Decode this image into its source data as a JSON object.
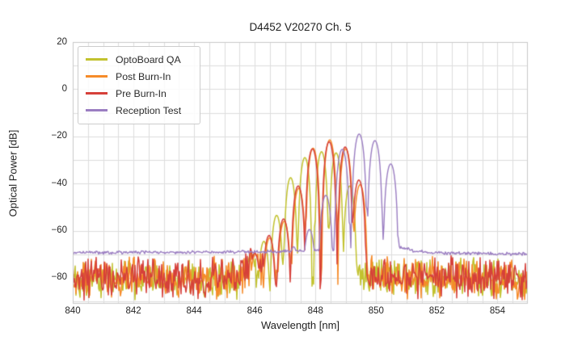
{
  "title": "D4452 V20270 Ch. 5",
  "axes": {
    "xlabel": "Wavelength [nm]",
    "ylabel": "Optical Power [dB]",
    "x_ticks": [
      {
        "value": 840,
        "label": "840"
      },
      {
        "value": 842,
        "label": "842"
      },
      {
        "value": 844,
        "label": "844"
      },
      {
        "value": 846,
        "label": "846"
      },
      {
        "value": 848,
        "label": "848"
      },
      {
        "value": 850,
        "label": "850"
      },
      {
        "value": 852,
        "label": "852"
      },
      {
        "value": 854,
        "label": "854"
      }
    ],
    "y_ticks": [
      {
        "value": 20,
        "label": "20"
      },
      {
        "value": 0,
        "label": "0"
      },
      {
        "value": -20,
        "label": "−20"
      },
      {
        "value": -40,
        "label": "−40"
      },
      {
        "value": -60,
        "label": "−60"
      },
      {
        "value": -80,
        "label": "−80"
      }
    ]
  },
  "legend": {
    "items": [
      {
        "label": "OptoBoard QA",
        "color": "#c2c22e"
      },
      {
        "label": "Post Burn-In",
        "color": "#f68b29"
      },
      {
        "label": "Pre Burn-In",
        "color": "#d6403a"
      },
      {
        "label": "Reception Test",
        "color": "#9b7ec2"
      }
    ]
  },
  "chart_data": {
    "type": "line",
    "title": "D4452 V20270 Ch. 5",
    "xlabel": "Wavelength [nm]",
    "ylabel": "Optical Power [dB]",
    "xlim": [
      840,
      855
    ],
    "ylim": [
      -91,
      20
    ],
    "grid": {
      "on": true,
      "x_step_nm": 0.5,
      "y_step_db": 10,
      "color": "#dddddd",
      "border_color": "#c9c9c9"
    },
    "legend_position": "upper left",
    "null_depth_db": 32,
    "lobe_rolloff_db": 40,
    "series": [
      {
        "name": "OptoBoard QA",
        "color": "#c2c22e",
        "line_width": 1.5,
        "mode_spacing_nm": 0.47,
        "modes": [
          [
            845.88,
            -69.5
          ],
          [
            846.3,
            -64.5
          ],
          [
            846.72,
            -53.5
          ],
          [
            847.18,
            -37.5
          ],
          [
            847.65,
            -29
          ],
          [
            848.2,
            -26.5
          ],
          [
            848.68,
            -27
          ],
          [
            849.13,
            -41
          ]
        ],
        "noise": {
          "type": "spiky",
          "amp_db": 10,
          "seed": 101,
          "baseline": [
            [
              840,
              -80.5
            ],
            [
              845.4,
              -80.3
            ],
            [
              845.75,
              -76.5
            ],
            [
              846.15,
              -76.5
            ],
            [
              846.5,
              -79.5
            ],
            [
              855,
              -80.3
            ]
          ]
        }
      },
      {
        "name": "Post Burn-In",
        "color": "#f68b29",
        "line_width": 1.5,
        "mode_spacing_nm": 0.5,
        "modes": [
          [
            846.02,
            -70
          ],
          [
            846.49,
            -63
          ],
          [
            846.97,
            -56
          ],
          [
            847.45,
            -42
          ],
          [
            847.92,
            -25.0
          ],
          [
            848.47,
            -21.5
          ],
          [
            849.0,
            -25.3
          ],
          [
            849.47,
            -40.5
          ]
        ],
        "noise": {
          "type": "spiky",
          "amp_db": 10,
          "seed": 202,
          "baseline": [
            [
              840,
              -80.5
            ],
            [
              845.4,
              -80.3
            ],
            [
              845.75,
              -76.5
            ],
            [
              846.15,
              -76.5
            ],
            [
              846.5,
              -79.5
            ],
            [
              855,
              -80.3
            ]
          ]
        }
      },
      {
        "name": "Pre Burn-In",
        "color": "#d6403a",
        "line_width": 1.5,
        "mode_spacing_nm": 0.5,
        "modes": [
          [
            846.0,
            -69.5
          ],
          [
            846.47,
            -62
          ],
          [
            846.95,
            -55
          ],
          [
            847.43,
            -41
          ],
          [
            847.9,
            -25.3
          ],
          [
            848.45,
            -22.3
          ],
          [
            848.98,
            -24.5
          ],
          [
            849.43,
            -38.5
          ]
        ],
        "noise": {
          "type": "spiky",
          "amp_db": 10,
          "seed": 303,
          "baseline": [
            [
              840,
              -80.4
            ],
            [
              845.4,
              -80.2
            ],
            [
              845.75,
              -76.4
            ],
            [
              846.15,
              -76.4
            ],
            [
              846.5,
              -79.4
            ],
            [
              855,
              -80.2
            ]
          ]
        }
      },
      {
        "name": "Reception Test",
        "color": "#9b7ec2",
        "line_width": 1.4,
        "mode_spacing_nm": 0.52,
        "modes": [
          [
            846.75,
            -69.3
          ],
          [
            847.28,
            -66.8
          ],
          [
            847.8,
            -59.5
          ],
          [
            848.34,
            -45
          ],
          [
            848.88,
            -25.5
          ],
          [
            849.44,
            -19.0
          ],
          [
            849.96,
            -21.8
          ],
          [
            850.48,
            -31.7
          ]
        ],
        "noise": {
          "type": "smooth",
          "amp_db": 0.8,
          "seed": 404,
          "baseline": [
            [
              840,
              -69.3
            ],
            [
              844,
              -69.2
            ],
            [
              846.5,
              -68.9
            ],
            [
              847.5,
              -68.7
            ],
            [
              850.55,
              -66.3
            ],
            [
              850.8,
              -67.0
            ],
            [
              851.3,
              -68.7
            ],
            [
              852.2,
              -69.6
            ],
            [
              855,
              -69.9
            ]
          ]
        }
      }
    ]
  }
}
